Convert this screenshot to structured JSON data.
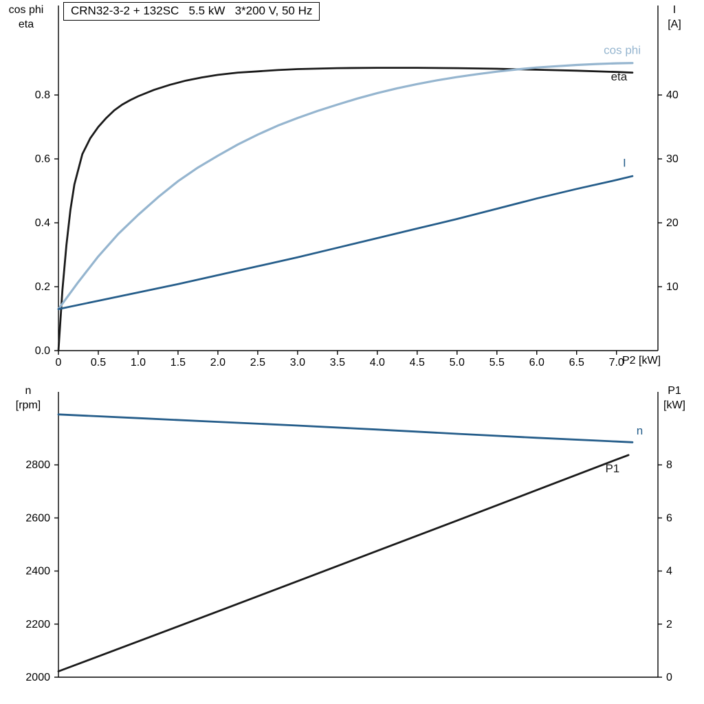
{
  "title": "CRN32-3-2 + 132SC   5.5 kW   3*200 V, 50 Hz",
  "labels": {
    "top_left_line1": "cos phi",
    "top_left_line2": "eta",
    "top_right_line1": "I",
    "top_right_line2": "[A]",
    "x_axis": "P2 [kW]",
    "bottom_left_line1": "n",
    "bottom_left_line2": "[rpm]",
    "bottom_right_line1": "P1",
    "bottom_right_line2": "[kW]"
  },
  "colors": {
    "axis": "#000000",
    "text": "#000000",
    "background": "#ffffff",
    "curve_black": "#1a1a1a",
    "curve_dark_blue": "#255d8a",
    "curve_light_blue": "#95b5cf"
  },
  "chart_data": [
    {
      "id": "top",
      "type": "line",
      "title": "CRN32-3-2 + 132SC   5.5 kW   3*200 V, 50 Hz",
      "xlabel": "P2 [kW]",
      "ylabel_left": "cos phi / eta",
      "ylabel_right": "I [A]",
      "grid": false,
      "legend_position": "inline-labels",
      "xlim": [
        0,
        7.52
      ],
      "ylim_left": [
        0,
        1.08
      ],
      "ylim_right": [
        0,
        54
      ],
      "xticks": [
        [
          0,
          "0"
        ],
        [
          0.5,
          "0.5"
        ],
        [
          1,
          "1.0"
        ],
        [
          1.5,
          "1.5"
        ],
        [
          2,
          "2.0"
        ],
        [
          2.5,
          "2.5"
        ],
        [
          3,
          "3.0"
        ],
        [
          3.5,
          "3.5"
        ],
        [
          4,
          "4.0"
        ],
        [
          4.5,
          "4.5"
        ],
        [
          5,
          "5.0"
        ],
        [
          5.5,
          "5.5"
        ],
        [
          6,
          "6.0"
        ],
        [
          6.5,
          "6.5"
        ],
        [
          7,
          "7.0"
        ]
      ],
      "yticks_left": [
        [
          0,
          "0.0"
        ],
        [
          0.2,
          "0.2"
        ],
        [
          0.4,
          "0.4"
        ],
        [
          0.6,
          "0.6"
        ],
        [
          0.8,
          "0.8"
        ]
      ],
      "yticks_right": [
        [
          10,
          "10"
        ],
        [
          20,
          "20"
        ],
        [
          30,
          "30"
        ],
        [
          40,
          "40"
        ]
      ],
      "series": [
        {
          "name": "eta",
          "axis": "left",
          "color": "#1a1a1a",
          "width": 2.8,
          "label": "eta",
          "label_at": [
            6.93,
            0.845
          ],
          "points": [
            [
              0,
              0
            ],
            [
              0.05,
              0.19
            ],
            [
              0.1,
              0.33
            ],
            [
              0.15,
              0.44
            ],
            [
              0.2,
              0.52
            ],
            [
              0.3,
              0.615
            ],
            [
              0.4,
              0.665
            ],
            [
              0.5,
              0.7
            ],
            [
              0.6,
              0.728
            ],
            [
              0.7,
              0.752
            ],
            [
              0.8,
              0.77
            ],
            [
              0.9,
              0.784
            ],
            [
              1,
              0.796
            ],
            [
              1.2,
              0.816
            ],
            [
              1.4,
              0.832
            ],
            [
              1.6,
              0.845
            ],
            [
              1.8,
              0.855
            ],
            [
              2,
              0.863
            ],
            [
              2.25,
              0.87
            ],
            [
              2.5,
              0.874
            ],
            [
              2.75,
              0.878
            ],
            [
              3,
              0.881
            ],
            [
              3.5,
              0.884
            ],
            [
              4,
              0.885
            ],
            [
              4.5,
              0.885
            ],
            [
              5,
              0.884
            ],
            [
              5.5,
              0.882
            ],
            [
              6,
              0.879
            ],
            [
              6.5,
              0.876
            ],
            [
              7,
              0.872
            ],
            [
              7.2,
              0.87
            ]
          ]
        },
        {
          "name": "cos phi",
          "axis": "left",
          "color": "#95b5cf",
          "width": 3.2,
          "label": "cos phi",
          "label_at": [
            6.84,
            0.928
          ],
          "points": [
            [
              0,
              0.13
            ],
            [
              0.25,
              0.215
            ],
            [
              0.5,
              0.295
            ],
            [
              0.75,
              0.365
            ],
            [
              1,
              0.425
            ],
            [
              1.25,
              0.48
            ],
            [
              1.5,
              0.53
            ],
            [
              1.75,
              0.573
            ],
            [
              2,
              0.61
            ],
            [
              2.25,
              0.645
            ],
            [
              2.5,
              0.676
            ],
            [
              2.75,
              0.704
            ],
            [
              3,
              0.728
            ],
            [
              3.25,
              0.75
            ],
            [
              3.5,
              0.77
            ],
            [
              3.75,
              0.789
            ],
            [
              4,
              0.806
            ],
            [
              4.25,
              0.821
            ],
            [
              4.5,
              0.834
            ],
            [
              4.75,
              0.846
            ],
            [
              5,
              0.856
            ],
            [
              5.25,
              0.865
            ],
            [
              5.5,
              0.873
            ],
            [
              5.75,
              0.88
            ],
            [
              6,
              0.886
            ],
            [
              6.25,
              0.89
            ],
            [
              6.5,
              0.894
            ],
            [
              6.75,
              0.897
            ],
            [
              7,
              0.899
            ],
            [
              7.2,
              0.9
            ]
          ]
        },
        {
          "name": "I",
          "axis": "right",
          "color": "#255d8a",
          "width": 2.8,
          "label": "I",
          "label_at": [
            7.08,
            28.8
          ],
          "points": [
            [
              0,
              6.5
            ],
            [
              0.5,
              7.8
            ],
            [
              1,
              9.1
            ],
            [
              1.5,
              10.4
            ],
            [
              2,
              11.8
            ],
            [
              2.5,
              13.2
            ],
            [
              3,
              14.6
            ],
            [
              3.5,
              16.1
            ],
            [
              4,
              17.6
            ],
            [
              4.5,
              19.1
            ],
            [
              5,
              20.6
            ],
            [
              5.5,
              22.2
            ],
            [
              6,
              23.8
            ],
            [
              6.5,
              25.3
            ],
            [
              7,
              26.7
            ],
            [
              7.2,
              27.3
            ]
          ]
        }
      ]
    },
    {
      "id": "bottom",
      "type": "line",
      "xlabel": "",
      "ylabel_left": "n [rpm]",
      "ylabel_right": "P1 [kW]",
      "grid": false,
      "legend_position": "inline-labels",
      "xlim": [
        0,
        7.52
      ],
      "ylim_left": [
        2000,
        3075
      ],
      "ylim_right": [
        0,
        10.75
      ],
      "xticks": [],
      "yticks_left": [
        [
          2000,
          "2000"
        ],
        [
          2200,
          "2200"
        ],
        [
          2400,
          "2400"
        ],
        [
          2600,
          "2600"
        ],
        [
          2800,
          "2800"
        ]
      ],
      "yticks_right": [
        [
          0,
          "0"
        ],
        [
          2,
          "2"
        ],
        [
          4,
          "4"
        ],
        [
          6,
          "6"
        ],
        [
          8,
          "8"
        ]
      ],
      "series": [
        {
          "name": "n",
          "axis": "left",
          "color": "#255d8a",
          "width": 2.8,
          "label": "n",
          "label_at": [
            7.25,
            2915
          ],
          "points": [
            [
              0,
              2990
            ],
            [
              1,
              2976
            ],
            [
              2,
              2962
            ],
            [
              3,
              2948
            ],
            [
              4,
              2933
            ],
            [
              5,
              2917
            ],
            [
              6,
              2902
            ],
            [
              7,
              2888
            ],
            [
              7.2,
              2885
            ]
          ]
        },
        {
          "name": "P1",
          "axis": "right",
          "color": "#1a1a1a",
          "width": 2.8,
          "label": "P1",
          "label_at": [
            6.86,
            7.72
          ],
          "points": [
            [
              0,
              0.22
            ],
            [
              1,
              1.35
            ],
            [
              2,
              2.48
            ],
            [
              3,
              3.62
            ],
            [
              4,
              4.76
            ],
            [
              5,
              5.9
            ],
            [
              6,
              7.05
            ],
            [
              7,
              8.2
            ],
            [
              7.15,
              8.37
            ]
          ]
        }
      ]
    }
  ]
}
